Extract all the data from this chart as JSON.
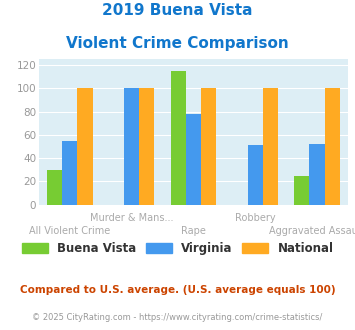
{
  "title_line1": "2019 Buena Vista",
  "title_line2": "Violent Crime Comparison",
  "categories": [
    "All Violent Crime",
    "Murder & Mans...",
    "Rape",
    "Robbery",
    "Aggravated Assault"
  ],
  "buena_vista": [
    30,
    0,
    115,
    0,
    25
  ],
  "virginia": [
    55,
    100,
    78,
    51,
    52
  ],
  "national": [
    100,
    100,
    100,
    100,
    100
  ],
  "colors": {
    "buena_vista": "#77cc33",
    "virginia": "#4499ee",
    "national": "#ffaa22"
  },
  "ylim": [
    0,
    125
  ],
  "yticks": [
    0,
    20,
    40,
    60,
    80,
    100,
    120
  ],
  "title_color": "#1177cc",
  "bg_color": "#ddeef5",
  "footnote1": "Compared to U.S. average. (U.S. average equals 100)",
  "footnote2": "© 2025 CityRating.com - https://www.cityrating.com/crime-statistics/",
  "footnote1_color": "#cc4400",
  "footnote2_color": "#999999",
  "legend_labels": [
    "Buena Vista",
    "Virginia",
    "National"
  ]
}
